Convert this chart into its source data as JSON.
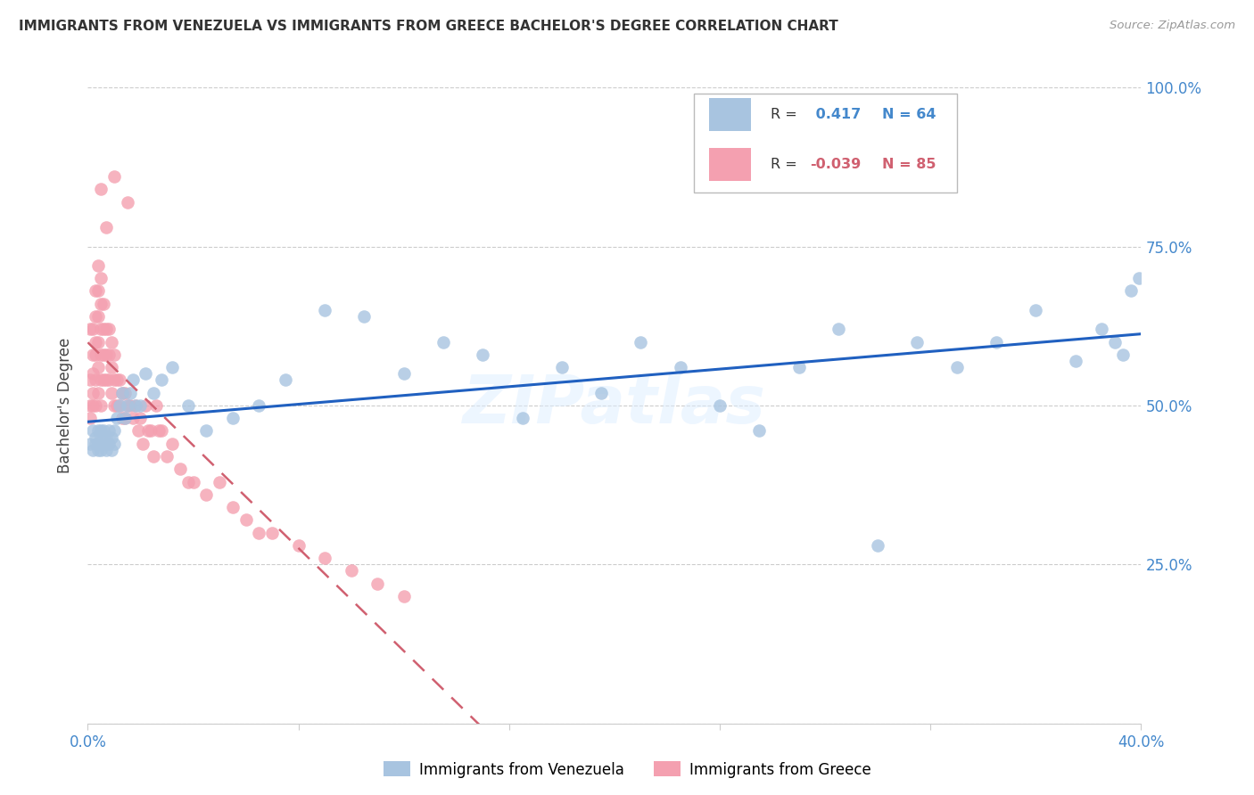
{
  "title": "IMMIGRANTS FROM VENEZUELA VS IMMIGRANTS FROM GREECE BACHELOR'S DEGREE CORRELATION CHART",
  "source": "Source: ZipAtlas.com",
  "ylabel": "Bachelor's Degree",
  "watermark": "ZIPatlas",
  "x_min": 0.0,
  "x_max": 0.4,
  "y_min": 0.0,
  "y_max": 1.0,
  "venezuela_color": "#a8c4e0",
  "greece_color": "#f4a0b0",
  "venezuela_R": 0.417,
  "venezuela_N": 64,
  "greece_R": -0.039,
  "greece_N": 85,
  "venezuela_line_color": "#2060c0",
  "greece_line_color": "#d06070",
  "grid_color": "#cccccc",
  "background_color": "#ffffff",
  "right_axis_color": "#4488cc",
  "ven_x": [
    0.001,
    0.002,
    0.002,
    0.003,
    0.003,
    0.004,
    0.004,
    0.004,
    0.005,
    0.005,
    0.005,
    0.006,
    0.006,
    0.007,
    0.007,
    0.008,
    0.008,
    0.009,
    0.009,
    0.01,
    0.01,
    0.011,
    0.012,
    0.013,
    0.014,
    0.015,
    0.016,
    0.017,
    0.018,
    0.02,
    0.022,
    0.025,
    0.028,
    0.032,
    0.038,
    0.045,
    0.055,
    0.065,
    0.075,
    0.09,
    0.105,
    0.12,
    0.135,
    0.15,
    0.165,
    0.18,
    0.195,
    0.21,
    0.225,
    0.24,
    0.255,
    0.27,
    0.285,
    0.3,
    0.315,
    0.33,
    0.345,
    0.36,
    0.375,
    0.385,
    0.39,
    0.393,
    0.396,
    0.399
  ],
  "ven_y": [
    0.44,
    0.46,
    0.43,
    0.45,
    0.44,
    0.43,
    0.46,
    0.44,
    0.45,
    0.43,
    0.46,
    0.44,
    0.46,
    0.43,
    0.45,
    0.44,
    0.46,
    0.43,
    0.45,
    0.44,
    0.46,
    0.48,
    0.5,
    0.52,
    0.48,
    0.5,
    0.52,
    0.54,
    0.5,
    0.5,
    0.55,
    0.52,
    0.54,
    0.56,
    0.5,
    0.46,
    0.48,
    0.5,
    0.54,
    0.65,
    0.64,
    0.55,
    0.6,
    0.58,
    0.48,
    0.56,
    0.52,
    0.6,
    0.56,
    0.5,
    0.46,
    0.56,
    0.62,
    0.28,
    0.6,
    0.56,
    0.6,
    0.65,
    0.57,
    0.62,
    0.6,
    0.58,
    0.68,
    0.7
  ],
  "gre_x": [
    0.001,
    0.001,
    0.001,
    0.001,
    0.002,
    0.002,
    0.002,
    0.002,
    0.002,
    0.003,
    0.003,
    0.003,
    0.003,
    0.003,
    0.003,
    0.004,
    0.004,
    0.004,
    0.004,
    0.004,
    0.004,
    0.005,
    0.005,
    0.005,
    0.005,
    0.005,
    0.005,
    0.006,
    0.006,
    0.006,
    0.006,
    0.007,
    0.007,
    0.007,
    0.007,
    0.008,
    0.008,
    0.008,
    0.009,
    0.009,
    0.009,
    0.01,
    0.01,
    0.01,
    0.011,
    0.011,
    0.012,
    0.012,
    0.013,
    0.013,
    0.014,
    0.014,
    0.015,
    0.016,
    0.017,
    0.018,
    0.019,
    0.02,
    0.021,
    0.022,
    0.023,
    0.024,
    0.025,
    0.026,
    0.027,
    0.028,
    0.03,
    0.032,
    0.035,
    0.038,
    0.04,
    0.045,
    0.05,
    0.055,
    0.06,
    0.065,
    0.07,
    0.08,
    0.09,
    0.1,
    0.11,
    0.12,
    0.005,
    0.01,
    0.015
  ],
  "gre_y": [
    0.5,
    0.54,
    0.48,
    0.62,
    0.52,
    0.55,
    0.58,
    0.5,
    0.62,
    0.5,
    0.54,
    0.6,
    0.58,
    0.64,
    0.68,
    0.52,
    0.56,
    0.6,
    0.64,
    0.68,
    0.72,
    0.5,
    0.54,
    0.58,
    0.62,
    0.66,
    0.7,
    0.54,
    0.58,
    0.62,
    0.66,
    0.54,
    0.58,
    0.62,
    0.78,
    0.54,
    0.58,
    0.62,
    0.52,
    0.56,
    0.6,
    0.5,
    0.54,
    0.58,
    0.5,
    0.54,
    0.5,
    0.54,
    0.48,
    0.52,
    0.48,
    0.52,
    0.5,
    0.5,
    0.48,
    0.5,
    0.46,
    0.48,
    0.44,
    0.5,
    0.46,
    0.46,
    0.42,
    0.5,
    0.46,
    0.46,
    0.42,
    0.44,
    0.4,
    0.38,
    0.38,
    0.36,
    0.38,
    0.34,
    0.32,
    0.3,
    0.3,
    0.28,
    0.26,
    0.24,
    0.22,
    0.2,
    0.84,
    0.86,
    0.82
  ]
}
